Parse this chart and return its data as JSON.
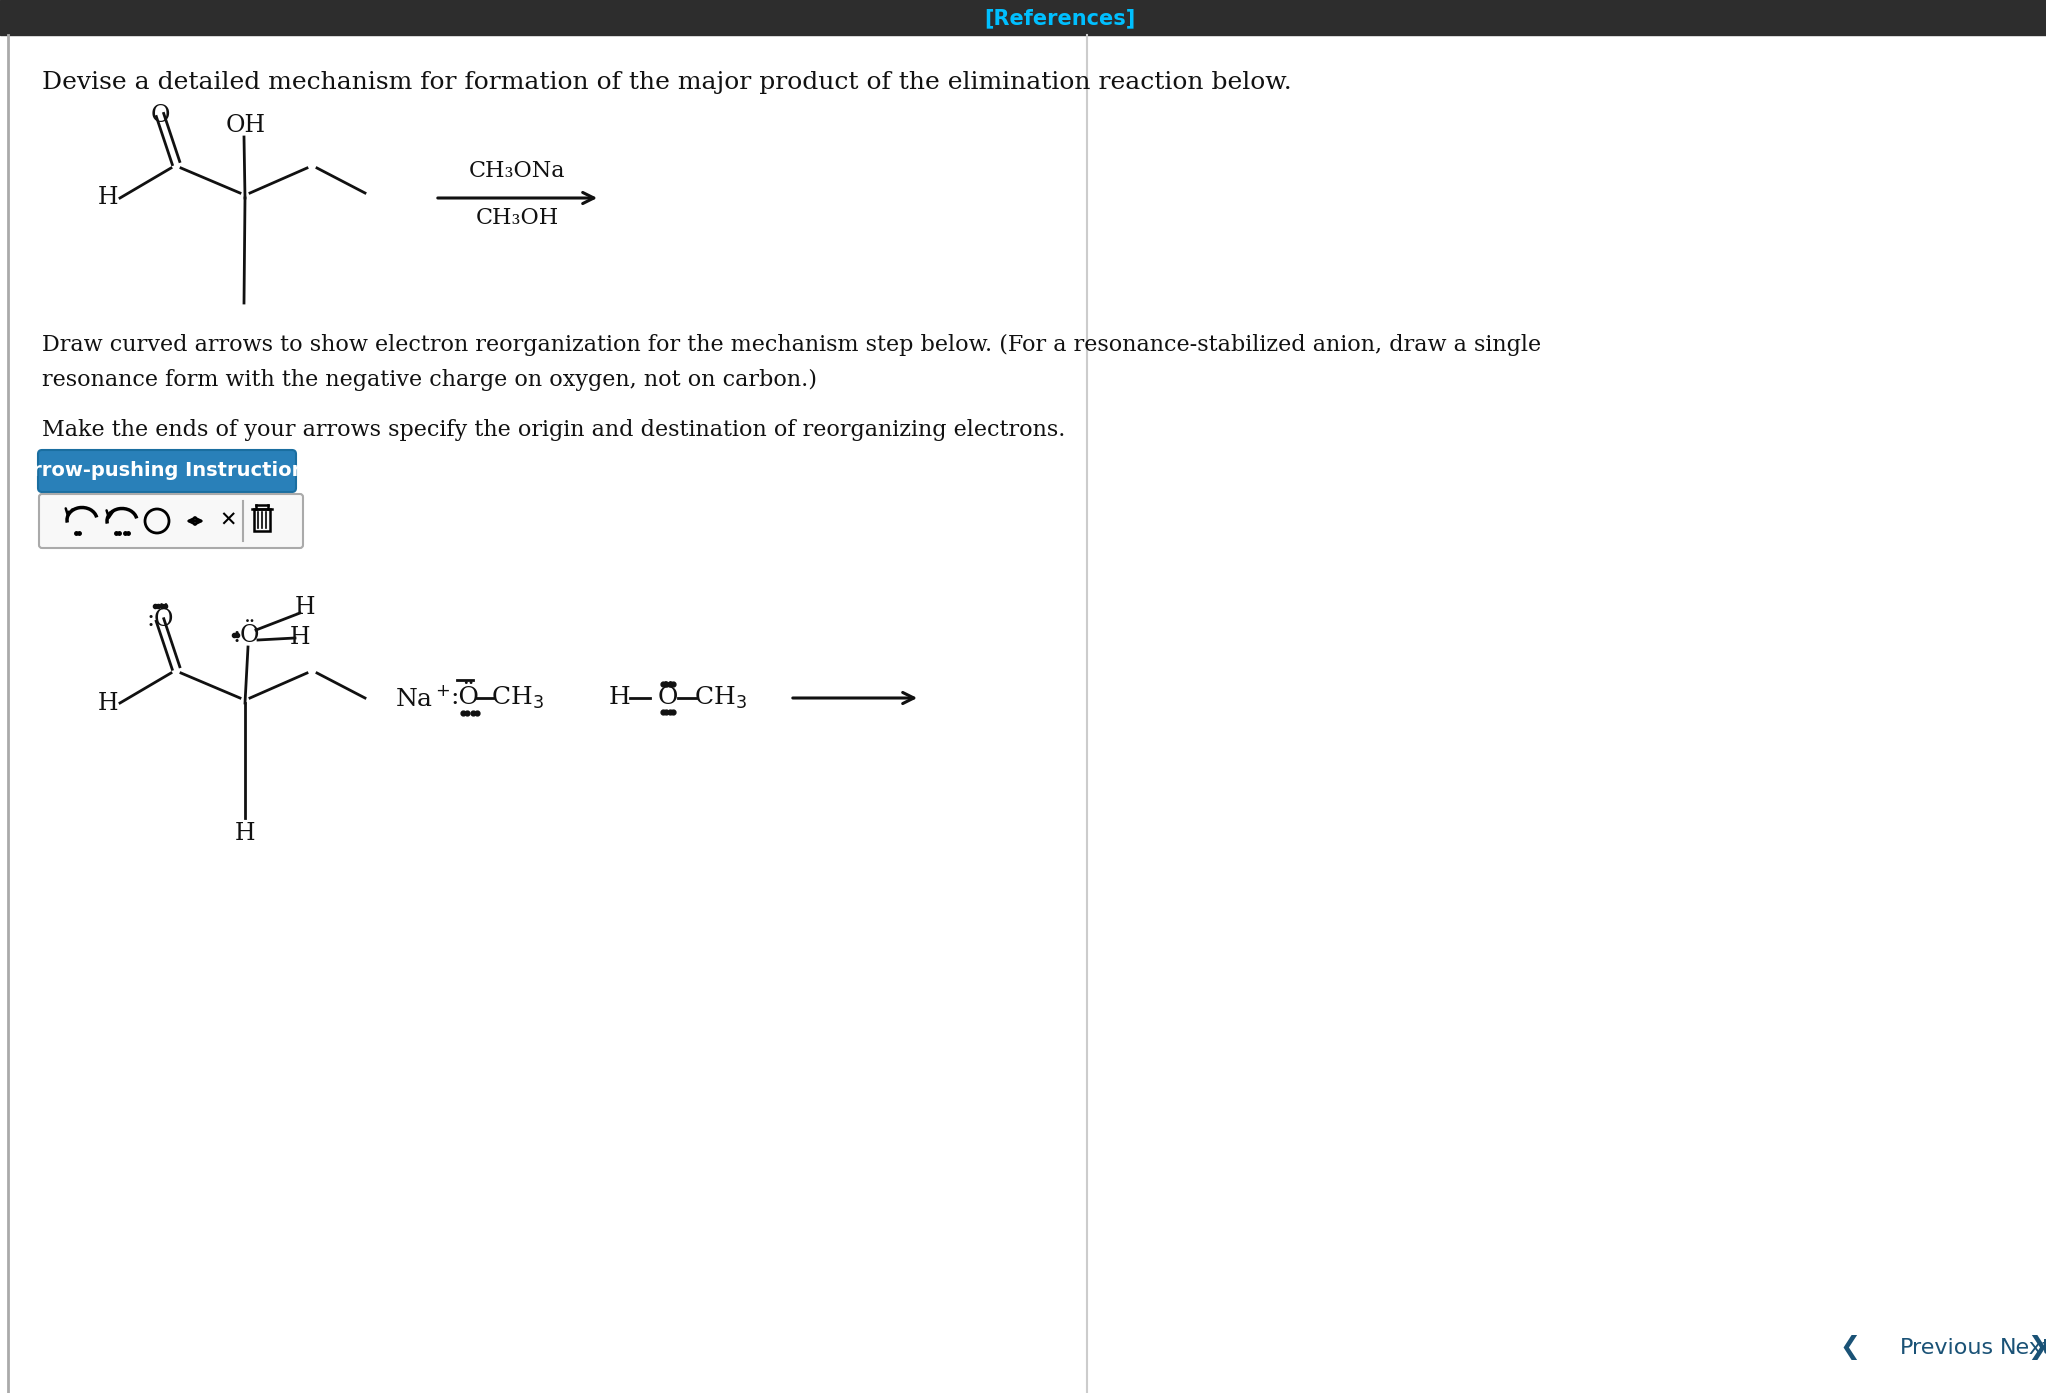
{
  "bg_color": "#ffffff",
  "header_bg": "#2d2d2d",
  "header_text": "[References]",
  "header_text_color": "#00bfff",
  "main_question": "Devise a detailed mechanism for formation of the major product of the elimination reaction below.",
  "draw_instruction_line1": "Draw curved arrows to show electron reorganization for the mechanism step below. (For a resonance-stabilized anion, draw a single",
  "draw_instruction_line2": "resonance form with the negative charge on oxygen, not on carbon.)",
  "make_instruction": "Make the ends of your arrows specify the origin and destination of reorganizing electrons.",
  "arrow_button_text": "Arrow-pushing Instructions",
  "arrow_button_bg": "#2980b9",
  "arrow_button_text_color": "#ffffff",
  "reagent_line1": "CH₃ONa",
  "reagent_line2": "CH₃OH",
  "nav_previous": "Previous",
  "nav_next": "Next",
  "nav_text_color": "#1a5276",
  "mol_color": "#111111"
}
